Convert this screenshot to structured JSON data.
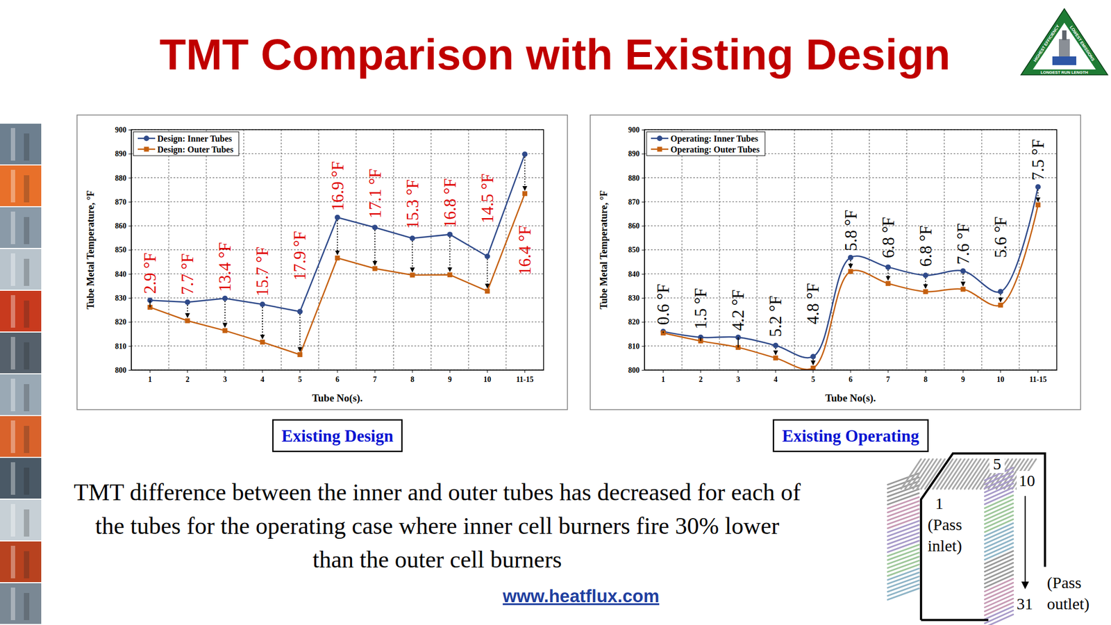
{
  "title": "TMT Comparison with Existing Design",
  "logo": {
    "texts": [
      "HIGHEST EFFICIENCY",
      "LOWEST EMISSIONS",
      "LONGEST RUN LENGTH"
    ]
  },
  "chart_data": [
    {
      "type": "line",
      "title": "Existing Design",
      "x_label": "Tube No(s).",
      "y_label": "Tube Metal Temperature, °F",
      "categories": [
        "1",
        "2",
        "3",
        "4",
        "5",
        "6",
        "7",
        "8",
        "9",
        "10",
        "11-15"
      ],
      "series": [
        {
          "name": "Design: Inner Tubes",
          "color": "#2f4a8a",
          "marker": "circle",
          "line_style": "solid",
          "values": [
            829.0,
            828.2,
            829.8,
            827.3,
            824.3,
            863.5,
            859.3,
            854.8,
            856.4,
            847.3,
            889.8
          ]
        },
        {
          "name": "Design: Outer Tubes",
          "color": "#c5600f",
          "marker": "square",
          "line_style": "solid",
          "values": [
            826.1,
            820.5,
            816.4,
            811.6,
            806.4,
            846.6,
            842.2,
            839.5,
            839.6,
            832.8,
            873.4
          ]
        }
      ],
      "ylim": [
        800,
        900
      ],
      "yticks": [
        800,
        810,
        820,
        830,
        840,
        850,
        860,
        870,
        880,
        890,
        900
      ],
      "grid": true,
      "legend": "upper left",
      "annotations": {
        "texts": [
          "2.9 °F",
          "7.7 °F",
          "13.4 °F",
          "15.7 °F",
          "17.9 °F",
          "16.9 °F",
          "17.1 °F",
          "15.3 °F",
          "16.8 °F",
          "14.5 °F",
          "16.4 °F"
        ],
        "color": "#e00000"
      }
    },
    {
      "type": "line",
      "title": "Existing Operating",
      "x_label": "Tube No(s).",
      "y_label": "Tube Metal Temperature, °F",
      "categories": [
        "1",
        "2",
        "3",
        "4",
        "5",
        "6",
        "7",
        "8",
        "9",
        "10",
        "11-15"
      ],
      "series": [
        {
          "name": "Operating: Inner Tubes",
          "color": "#2f4a8a",
          "marker": "circle",
          "line_style": "smooth",
          "values": [
            816.0,
            813.6,
            813.6,
            810.2,
            805.6,
            846.8,
            842.8,
            839.4,
            841.2,
            832.6,
            876.2
          ]
        },
        {
          "name": "Operating: Outer Tubes",
          "color": "#c5600f",
          "marker": "square",
          "line_style": "smooth",
          "values": [
            815.4,
            812.1,
            809.4,
            805.0,
            800.8,
            841.0,
            836.0,
            832.6,
            833.6,
            827.0,
            868.7
          ]
        }
      ],
      "ylim": [
        800,
        900
      ],
      "yticks": [
        800,
        810,
        820,
        830,
        840,
        850,
        860,
        870,
        880,
        890,
        900
      ],
      "grid": true,
      "legend": "upper left",
      "annotations": {
        "texts": [
          "0.6 °F",
          "1.5 °F",
          "4.2 °F",
          "5.2 °F",
          "4.8 °F",
          "5.8 °F",
          "6.8 °F",
          "6.8 °F",
          "7.6 °F",
          "5.6 °F",
          "7.5 °F"
        ],
        "color": "#000000"
      }
    }
  ],
  "caption": "TMT difference between the inner and outer tubes has decreased for each of the tubes for the operating case where inner cell burners fire 30% lower than the outer cell burners",
  "url": "www.heatflux.com",
  "diagram": {
    "top_label": "5",
    "right_label": "10",
    "inlet_tube": "1",
    "inlet": "(Pass inlet)",
    "outlet_tube": "31",
    "outlet": "(Pass outlet)"
  }
}
